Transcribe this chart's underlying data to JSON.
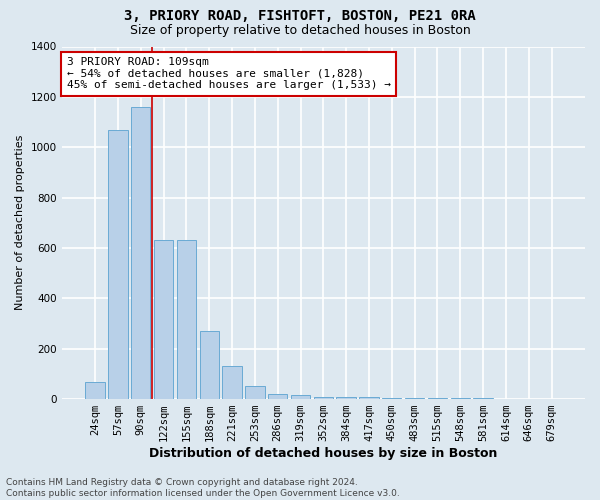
{
  "title1": "3, PRIORY ROAD, FISHTOFT, BOSTON, PE21 0RA",
  "title2": "Size of property relative to detached houses in Boston",
  "xlabel": "Distribution of detached houses by size in Boston",
  "ylabel": "Number of detached properties",
  "categories": [
    "24sqm",
    "57sqm",
    "90sqm",
    "122sqm",
    "155sqm",
    "188sqm",
    "221sqm",
    "253sqm",
    "286sqm",
    "319sqm",
    "352sqm",
    "384sqm",
    "417sqm",
    "450sqm",
    "483sqm",
    "515sqm",
    "548sqm",
    "581sqm",
    "614sqm",
    "646sqm",
    "679sqm"
  ],
  "values": [
    68,
    1070,
    1160,
    630,
    630,
    270,
    130,
    50,
    20,
    15,
    10,
    8,
    8,
    5,
    5,
    5,
    3,
    3,
    2,
    2,
    2
  ],
  "bar_color": "#b8d0e8",
  "bar_edge_color": "#6aaad4",
  "background_color": "#dde8f0",
  "grid_color": "#ffffff",
  "vline_x": 2.5,
  "vline_color": "#cc0000",
  "annotation_text": "3 PRIORY ROAD: 109sqm\n← 54% of detached houses are smaller (1,828)\n45% of semi-detached houses are larger (1,533) →",
  "annotation_box_facecolor": "#ffffff",
  "annotation_box_edgecolor": "#cc0000",
  "ylim": [
    0,
    1400
  ],
  "yticks": [
    0,
    200,
    400,
    600,
    800,
    1000,
    1200,
    1400
  ],
  "footer": "Contains HM Land Registry data © Crown copyright and database right 2024.\nContains public sector information licensed under the Open Government Licence v3.0.",
  "title1_fontsize": 10,
  "title2_fontsize": 9,
  "xlabel_fontsize": 9,
  "ylabel_fontsize": 8,
  "tick_fontsize": 7.5,
  "annotation_fontsize": 8,
  "footer_fontsize": 6.5
}
